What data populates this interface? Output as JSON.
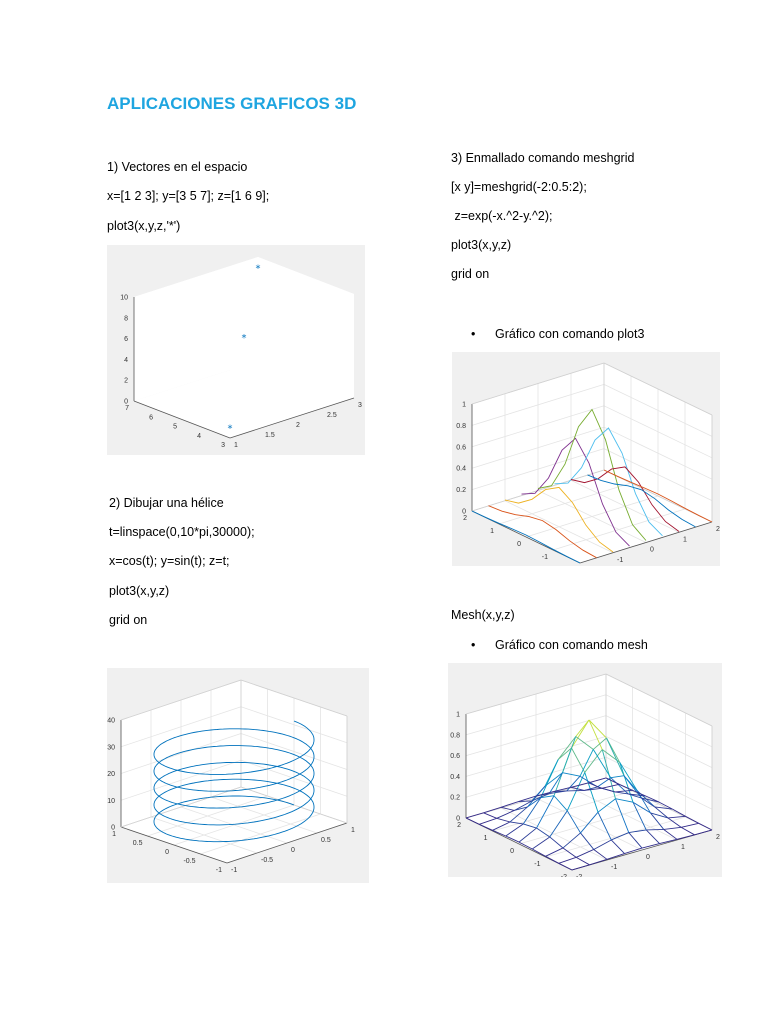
{
  "title": "APLICACIONES GRAFICOS 3D",
  "section1": {
    "heading": "1) Vectores en el espacio",
    "lines": [
      "x=[1 2 3]; y=[3 5 7]; z=[1 6 9];",
      "plot3(x,y,z,'*')"
    ]
  },
  "section2": {
    "heading": "2) Dibujar una hélice",
    "lines": [
      "t=linspace(0,10*pi,30000);",
      "x=cos(t); y=sin(t); z=t;",
      "plot3(x,y,z)",
      "grid on"
    ]
  },
  "section3": {
    "heading": "3) Enmallado comando meshgrid",
    "lines": [
      "[x y]=meshgrid(-2:0.5:2);",
      " z=exp(-x.^2-y.^2);",
      "plot3(x,y,z)",
      "grid on"
    ],
    "bullet1": "Gráfico con comando plot3",
    "mesh_cmd": "Mesh(x,y,z)",
    "bullet2": "Gráfico con comando mesh"
  },
  "chart_data": [
    {
      "type": "scatter",
      "series": [
        {
          "x": [
            1,
            2,
            3
          ],
          "y": [
            3,
            5,
            7
          ],
          "z": [
            1,
            6,
            9
          ],
          "marker": "*",
          "color": "#0072bd"
        }
      ],
      "ticks": {
        "z": [
          "0",
          "2",
          "4",
          "6",
          "8",
          "10"
        ],
        "y": [
          "3",
          "4",
          "5",
          "6",
          "7"
        ],
        "x": [
          "1",
          "1.5",
          "2",
          "2.5",
          "3"
        ]
      },
      "grid": false
    },
    {
      "type": "line",
      "series": [
        {
          "equation": "x=cos(t); y=sin(t); z=t",
          "t_range": [
            0,
            31.4159
          ],
          "color": "#0072bd"
        }
      ],
      "ticks": {
        "z": [
          "0",
          "10",
          "20",
          "30",
          "40"
        ],
        "y": [
          "1",
          "0.5",
          "0",
          "-0.5",
          "-1"
        ],
        "x": [
          "-1",
          "-0.5",
          "0",
          "0.5",
          "1"
        ]
      },
      "grid": true
    },
    {
      "type": "line",
      "series": [
        {
          "equation": "z=exp(-x.^2-y.^2)",
          "grid": "meshgrid(-2:0.5:2)",
          "style": "plot3 columns, multicolor"
        }
      ],
      "ticks": {
        "z": [
          "0",
          "0.2",
          "0.4",
          "0.6",
          "0.8",
          "1"
        ],
        "y": [
          "2",
          "1",
          "0",
          "-1",
          "-2"
        ],
        "x": [
          "-2",
          "-1",
          "0",
          "1",
          "2"
        ]
      },
      "grid": true
    },
    {
      "type": "area",
      "series": [
        {
          "equation": "z=exp(-x.^2-y.^2)",
          "grid": "meshgrid(-2:0.5:2)",
          "style": "mesh"
        }
      ],
      "ticks": {
        "z": [
          "0",
          "0.2",
          "0.4",
          "0.6",
          "0.8",
          "1"
        ],
        "y": [
          "2",
          "1",
          "0",
          "-1",
          "-2"
        ],
        "x": [
          "-2",
          "-1",
          "0",
          "1",
          "2"
        ]
      },
      "grid": true
    }
  ]
}
